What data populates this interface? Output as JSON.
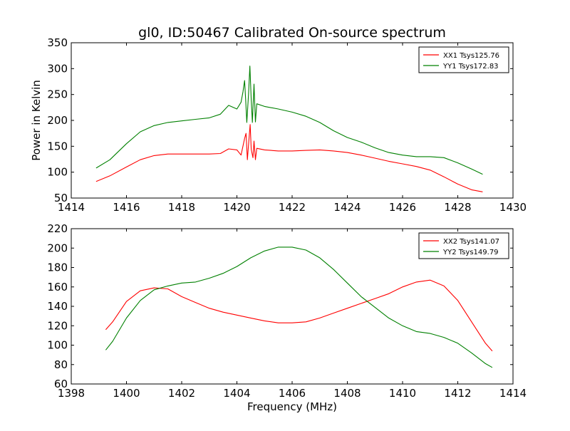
{
  "figure": {
    "title": "gl0, ID:50467 Calibrated On-source spectrum",
    "ylabel": "Power in Kelvin",
    "xlabel": "Frequency (MHz)"
  },
  "chart_data": [
    {
      "type": "line",
      "xlim": [
        1414,
        1430
      ],
      "ylim": [
        50,
        350
      ],
      "xticks": [
        1414,
        1416,
        1418,
        1420,
        1422,
        1424,
        1426,
        1428,
        1430
      ],
      "yticks": [
        50,
        100,
        150,
        200,
        250,
        300,
        350
      ],
      "ylabel": "Power in Kelvin",
      "grid": false,
      "legend_position": "top-right",
      "series": [
        {
          "name": "XX1 Tsys125.76",
          "color": "#ff0000",
          "points": [
            [
              1414.9,
              82
            ],
            [
              1415.4,
              93
            ],
            [
              1416.0,
              110
            ],
            [
              1416.5,
              124
            ],
            [
              1417.0,
              132
            ],
            [
              1417.5,
              135
            ],
            [
              1418.0,
              135
            ],
            [
              1418.5,
              135
            ],
            [
              1419.0,
              135
            ],
            [
              1419.4,
              136
            ],
            [
              1419.7,
              145
            ],
            [
              1420.0,
              143
            ],
            [
              1420.15,
              133
            ],
            [
              1420.28,
              165
            ],
            [
              1420.33,
              175
            ],
            [
              1420.38,
              124
            ],
            [
              1420.45,
              172
            ],
            [
              1420.48,
              192
            ],
            [
              1420.52,
              144
            ],
            [
              1420.58,
              128
            ],
            [
              1420.62,
              160
            ],
            [
              1420.67,
              124
            ],
            [
              1420.72,
              146
            ],
            [
              1421.0,
              143
            ],
            [
              1421.5,
              141
            ],
            [
              1422.0,
              141
            ],
            [
              1422.5,
              142
            ],
            [
              1423.0,
              143
            ],
            [
              1423.5,
              141
            ],
            [
              1424.0,
              138
            ],
            [
              1424.5,
              133
            ],
            [
              1425.0,
              127
            ],
            [
              1425.5,
              121
            ],
            [
              1426.0,
              116
            ],
            [
              1426.5,
              111
            ],
            [
              1427.0,
              104
            ],
            [
              1427.5,
              91
            ],
            [
              1428.0,
              77
            ],
            [
              1428.5,
              66
            ],
            [
              1428.9,
              62
            ]
          ]
        },
        {
          "name": "YY1 Tsys172.83",
          "color": "#008000",
          "points": [
            [
              1414.9,
              108
            ],
            [
              1415.4,
              124
            ],
            [
              1416.0,
              155
            ],
            [
              1416.5,
              178
            ],
            [
              1417.0,
              190
            ],
            [
              1417.5,
              196
            ],
            [
              1418.0,
              199
            ],
            [
              1418.5,
              202
            ],
            [
              1419.0,
              205
            ],
            [
              1419.4,
              212
            ],
            [
              1419.7,
              229
            ],
            [
              1420.0,
              222
            ],
            [
              1420.15,
              235
            ],
            [
              1420.22,
              255
            ],
            [
              1420.28,
              277
            ],
            [
              1420.32,
              237
            ],
            [
              1420.36,
              196
            ],
            [
              1420.42,
              250
            ],
            [
              1420.47,
              305
            ],
            [
              1420.52,
              240
            ],
            [
              1420.56,
              196
            ],
            [
              1420.62,
              270
            ],
            [
              1420.67,
              197
            ],
            [
              1420.72,
              232
            ],
            [
              1421.0,
              227
            ],
            [
              1421.5,
              222
            ],
            [
              1422.0,
              216
            ],
            [
              1422.5,
              208
            ],
            [
              1423.0,
              196
            ],
            [
              1423.5,
              180
            ],
            [
              1424.0,
              167
            ],
            [
              1424.5,
              158
            ],
            [
              1425.0,
              147
            ],
            [
              1425.5,
              138
            ],
            [
              1426.0,
              133
            ],
            [
              1426.5,
              130
            ],
            [
              1427.0,
              130
            ],
            [
              1427.5,
              128
            ],
            [
              1428.0,
              118
            ],
            [
              1428.5,
              106
            ],
            [
              1428.9,
              96
            ]
          ]
        }
      ]
    },
    {
      "type": "line",
      "xlim": [
        1398,
        1414
      ],
      "ylim": [
        60,
        220
      ],
      "xticks": [
        1398,
        1400,
        1402,
        1404,
        1406,
        1408,
        1410,
        1412,
        1414
      ],
      "yticks": [
        60,
        80,
        100,
        120,
        140,
        160,
        180,
        200,
        220
      ],
      "xlabel": "Frequency (MHz)",
      "grid": false,
      "legend_position": "top-right",
      "series": [
        {
          "name": "XX2 Tsys141.07",
          "color": "#ff0000",
          "points": [
            [
              1399.25,
              116
            ],
            [
              1399.5,
              124
            ],
            [
              1400.0,
              145
            ],
            [
              1400.5,
              156
            ],
            [
              1401.0,
              159
            ],
            [
              1401.5,
              158
            ],
            [
              1402.0,
              150
            ],
            [
              1402.5,
              144
            ],
            [
              1403.0,
              138
            ],
            [
              1403.5,
              134
            ],
            [
              1404.0,
              131
            ],
            [
              1404.5,
              128
            ],
            [
              1405.0,
              125
            ],
            [
              1405.5,
              123
            ],
            [
              1406.0,
              123
            ],
            [
              1406.5,
              124
            ],
            [
              1407.0,
              128
            ],
            [
              1407.5,
              133
            ],
            [
              1408.0,
              138
            ],
            [
              1408.5,
              143
            ],
            [
              1409.0,
              148
            ],
            [
              1409.5,
              153
            ],
            [
              1410.0,
              160
            ],
            [
              1410.5,
              165
            ],
            [
              1411.0,
              167
            ],
            [
              1411.5,
              161
            ],
            [
              1412.0,
              146
            ],
            [
              1412.5,
              124
            ],
            [
              1413.0,
              102
            ],
            [
              1413.25,
              94
            ]
          ]
        },
        {
          "name": "YY2 Tsys149.79",
          "color": "#008000",
          "points": [
            [
              1399.25,
              95
            ],
            [
              1399.5,
              104
            ],
            [
              1400.0,
              128
            ],
            [
              1400.5,
              146
            ],
            [
              1401.0,
              157
            ],
            [
              1401.5,
              161
            ],
            [
              1402.0,
              164
            ],
            [
              1402.5,
              165
            ],
            [
              1403.0,
              169
            ],
            [
              1403.5,
              174
            ],
            [
              1404.0,
              181
            ],
            [
              1404.5,
              190
            ],
            [
              1405.0,
              197
            ],
            [
              1405.5,
              201
            ],
            [
              1406.0,
              201
            ],
            [
              1406.5,
              198
            ],
            [
              1407.0,
              190
            ],
            [
              1407.5,
              178
            ],
            [
              1408.0,
              164
            ],
            [
              1408.5,
              150
            ],
            [
              1409.0,
              139
            ],
            [
              1409.5,
              128
            ],
            [
              1410.0,
              120
            ],
            [
              1410.5,
              114
            ],
            [
              1411.0,
              112
            ],
            [
              1411.5,
              108
            ],
            [
              1412.0,
              102
            ],
            [
              1412.5,
              92
            ],
            [
              1413.0,
              81
            ],
            [
              1413.25,
              77
            ]
          ]
        }
      ]
    }
  ]
}
